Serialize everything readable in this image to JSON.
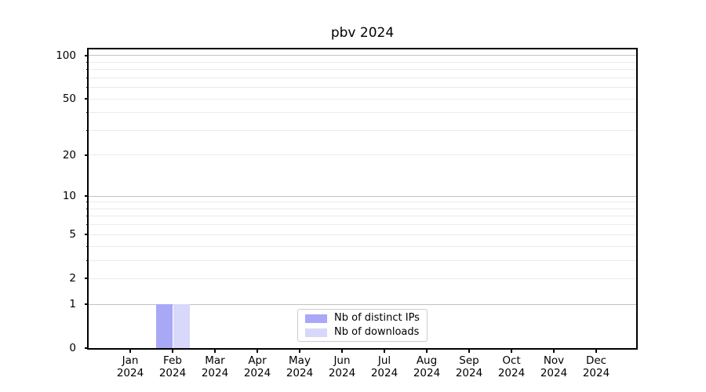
{
  "title": "pbv 2024",
  "chart_data": {
    "type": "bar",
    "title": "pbv 2024",
    "x_months": [
      "Jan",
      "Feb",
      "Mar",
      "Apr",
      "May",
      "Jun",
      "Jul",
      "Aug",
      "Sep",
      "Oct",
      "Nov",
      "Dec"
    ],
    "x_year": "2024",
    "series": [
      {
        "name": "Nb of distinct IPs",
        "color": "#a8a8f6",
        "values": [
          0,
          1,
          0,
          0,
          0,
          0,
          0,
          0,
          0,
          0,
          0,
          0
        ]
      },
      {
        "name": "Nb of downloads",
        "color": "#d8d8fa",
        "values": [
          0,
          1,
          0,
          0,
          0,
          0,
          0,
          0,
          0,
          0,
          0,
          0
        ]
      }
    ],
    "y_scale": "log1p",
    "ylim": [
      0,
      110
    ],
    "y_labeled_ticks": [
      0,
      1,
      2,
      5,
      10,
      20,
      50,
      100
    ],
    "y_major_gridlines": [
      1,
      10,
      100
    ],
    "y_minor_gridlines": [
      2,
      3,
      4,
      5,
      6,
      7,
      8,
      9,
      20,
      30,
      40,
      50,
      60,
      70,
      80,
      90
    ],
    "grid": "on",
    "legend_position": "lower center",
    "xlabel": "",
    "ylabel": ""
  },
  "colors": {
    "grid_major": "#c2c2c2",
    "grid_minor": "#ebebeb",
    "axis": "#000000",
    "legend_border": "#cccccc"
  }
}
